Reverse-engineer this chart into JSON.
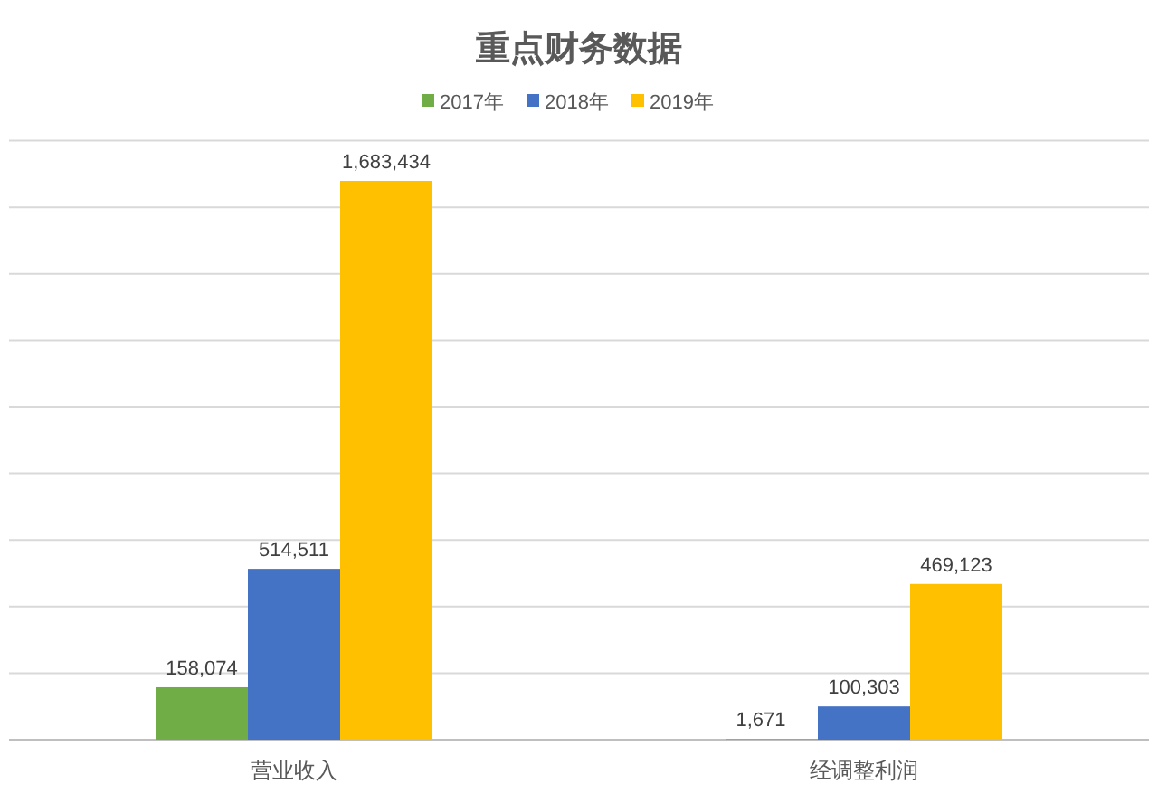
{
  "chart_data": {
    "type": "bar",
    "title": "重点财务数据",
    "categories": [
      "营业收入",
      "经调整利润"
    ],
    "series": [
      {
        "name": "2017年",
        "color": "#70ad47",
        "values": [
          158074,
          1671
        ],
        "value_labels": [
          "158,074",
          "1,671"
        ]
      },
      {
        "name": "2018年",
        "color": "#4472c4",
        "values": [
          514511,
          100303
        ],
        "value_labels": [
          "514,511",
          "100,303"
        ]
      },
      {
        "name": "2019年",
        "color": "#ffc000",
        "values": [
          1683434,
          469123
        ],
        "value_labels": [
          "1,683,434",
          "469,123"
        ]
      }
    ],
    "grid": "y",
    "legend": "top"
  }
}
